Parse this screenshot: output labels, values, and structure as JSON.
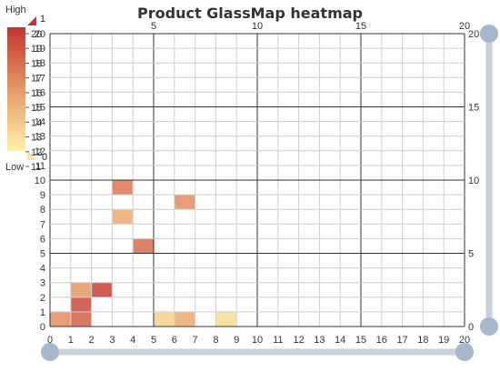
{
  "chart_data": {
    "type": "heatmap",
    "title": "Product GlassMap heatmap",
    "x_ticks": [
      "0",
      "1",
      "2",
      "3",
      "4",
      "5",
      "6",
      "7",
      "8",
      "9",
      "10",
      "11",
      "12",
      "13",
      "14",
      "15",
      "16",
      "17",
      "18",
      "19",
      "20"
    ],
    "y_ticks": [
      "0",
      "1",
      "2",
      "3",
      "4",
      "5",
      "6",
      "7",
      "8",
      "9",
      "10",
      "11",
      "12",
      "13",
      "14",
      "15",
      "16",
      "17",
      "18",
      "19",
      "20"
    ],
    "top_ticks": [
      "5",
      "10",
      "15",
      "20"
    ],
    "right_ticks": [
      "0",
      "5",
      "10",
      "15",
      "20"
    ],
    "xlim": [
      0,
      20
    ],
    "ylim": [
      0,
      20
    ],
    "grid": true,
    "visual_map": {
      "high_label": "High",
      "low_label": "Low",
      "handle_top_value": "1",
      "handle_bottom_value": "0",
      "ticks": [
        "11",
        "12",
        "13",
        "14",
        "15",
        "16",
        "17",
        "18",
        "19",
        "20"
      ],
      "color_high": "#c23531",
      "color_mid": "#e8a36a",
      "color_low": "#fff1a8"
    },
    "cells": [
      {
        "x": 0,
        "y": 0,
        "value": 0.6
      },
      {
        "x": 1,
        "y": 0,
        "value": 0.8
      },
      {
        "x": 1,
        "y": 1,
        "value": 0.9
      },
      {
        "x": 1,
        "y": 2,
        "value": 0.55
      },
      {
        "x": 2,
        "y": 2,
        "value": 0.95
      },
      {
        "x": 3,
        "y": 7,
        "value": 0.45
      },
      {
        "x": 3,
        "y": 9,
        "value": 0.7
      },
      {
        "x": 4,
        "y": 5,
        "value": 0.75
      },
      {
        "x": 5,
        "y": 0,
        "value": 0.2
      },
      {
        "x": 6,
        "y": 0,
        "value": 0.45
      },
      {
        "x": 6,
        "y": 8,
        "value": 0.6
      },
      {
        "x": 8,
        "y": 0,
        "value": 0.15
      }
    ]
  },
  "colors": {
    "grid": "#cccccc",
    "major_grid": "#333333",
    "slider_track": "#c9d1dd",
    "slider_handle": "#a7b7cc"
  }
}
